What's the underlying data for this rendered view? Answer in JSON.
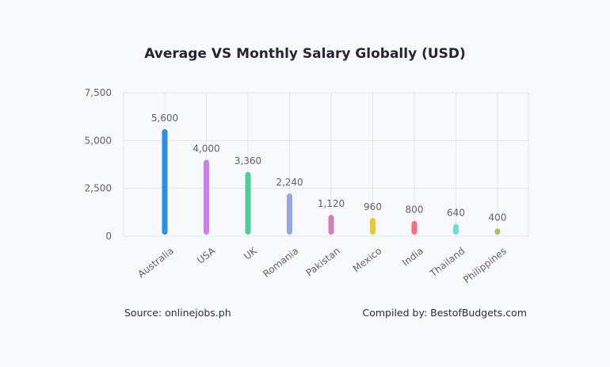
{
  "chart_data": {
    "type": "bar",
    "title": "Average VS Monthly Salary Globally (USD)",
    "categories": [
      "Australia",
      "USA",
      "UK",
      "Romania",
      "Pakistan",
      "Mexico",
      "India",
      "Thailand",
      "Philippines"
    ],
    "values": [
      5600,
      4000,
      3360,
      2240,
      1120,
      960,
      800,
      640,
      400
    ],
    "value_labels": [
      "5,600",
      "4,000",
      "3,360",
      "2,240",
      "1,120",
      "960",
      "800",
      "640",
      "400"
    ],
    "colors": [
      "#2d8fea",
      "#cc7ff2",
      "#4ecf97",
      "#95a8e4",
      "#d47fb5",
      "#e9c930",
      "#f46e83",
      "#6ee0d0",
      "#a7c25b"
    ],
    "ylim": [
      0,
      7500
    ],
    "yticks": [
      0,
      2500,
      5000,
      7500
    ],
    "ytick_labels": [
      "0",
      "2,500",
      "5,000",
      "7,500"
    ],
    "grid": true,
    "xlabel": "",
    "ylabel": ""
  },
  "footer": {
    "source": "Source: onlinejobs.ph",
    "compiled": "Compiled by: BestofBudgets.com"
  }
}
